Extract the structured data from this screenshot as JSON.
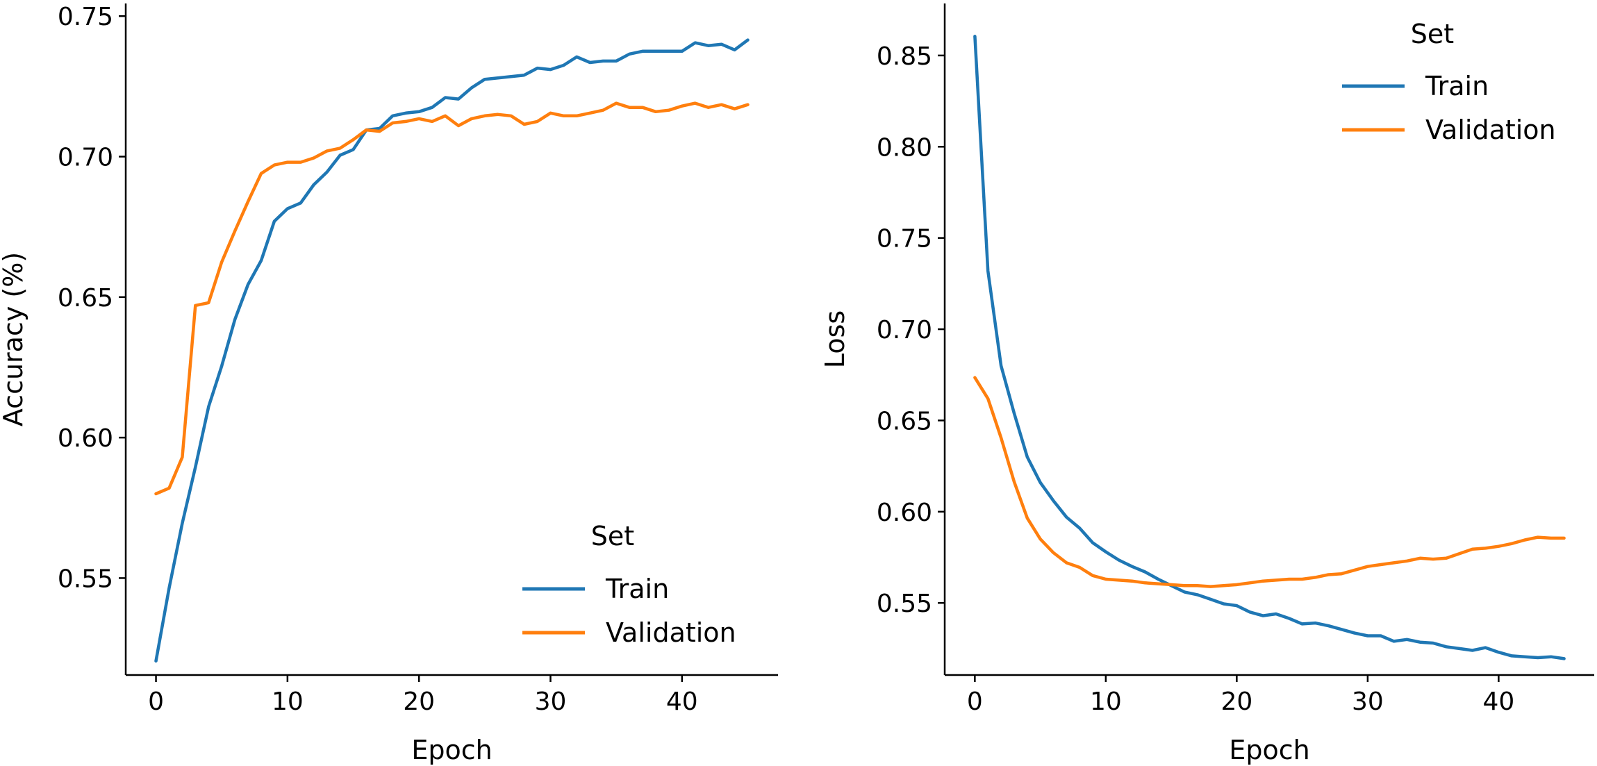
{
  "colors": {
    "train": "#1f77b4",
    "validation": "#ff7f0e",
    "axis": "#000000"
  },
  "chart_data": [
    {
      "type": "line",
      "xlabel": "Epoch",
      "ylabel": "Accuracy (%)",
      "xlim": [
        -2.3,
        47.3
      ],
      "ylim": [
        0.5155,
        0.7545
      ],
      "xticks": [
        0,
        10,
        20,
        30,
        40
      ],
      "yticks": [
        0.55,
        0.6,
        0.65,
        0.7,
        0.75
      ],
      "ytick_labels": [
        "0.55",
        "0.60",
        "0.65",
        "0.70",
        "0.75"
      ],
      "grid": false,
      "legend": {
        "title": "Set",
        "placement": "lower-right"
      },
      "x": [
        0,
        1,
        2,
        3,
        4,
        5,
        6,
        7,
        8,
        9,
        10,
        11,
        12,
        13,
        14,
        15,
        16,
        17,
        18,
        19,
        20,
        21,
        22,
        23,
        24,
        25,
        26,
        27,
        28,
        29,
        30,
        31,
        32,
        33,
        34,
        35,
        36,
        37,
        38,
        39,
        40,
        41,
        42,
        43,
        44,
        45
      ],
      "series": [
        {
          "name": "Train",
          "color_key": "train",
          "values": [
            0.5205,
            0.5465,
            0.5695,
            0.5895,
            0.611,
            0.6255,
            0.642,
            0.6545,
            0.663,
            0.677,
            0.6815,
            0.6835,
            0.69,
            0.6945,
            0.7005,
            0.7025,
            0.7095,
            0.71,
            0.7145,
            0.7155,
            0.716,
            0.7175,
            0.721,
            0.7205,
            0.7245,
            0.7275,
            0.728,
            0.7285,
            0.729,
            0.7315,
            0.731,
            0.7325,
            0.7355,
            0.7335,
            0.734,
            0.734,
            0.7365,
            0.7375,
            0.7375,
            0.7375,
            0.7375,
            0.7405,
            0.7395,
            0.74,
            0.738,
            0.7415
          ]
        },
        {
          "name": "Validation",
          "color_key": "validation",
          "values": [
            0.58,
            0.582,
            0.593,
            0.647,
            0.648,
            0.6625,
            0.6735,
            0.684,
            0.694,
            0.697,
            0.698,
            0.698,
            0.6995,
            0.702,
            0.703,
            0.706,
            0.7095,
            0.709,
            0.712,
            0.7125,
            0.7135,
            0.7125,
            0.7145,
            0.711,
            0.7135,
            0.7145,
            0.715,
            0.7145,
            0.7115,
            0.7125,
            0.7155,
            0.7145,
            0.7145,
            0.7155,
            0.7165,
            0.719,
            0.7175,
            0.7175,
            0.716,
            0.7165,
            0.718,
            0.719,
            0.7175,
            0.7185,
            0.717,
            0.7185
          ]
        }
      ]
    },
    {
      "type": "line",
      "xlabel": "Epoch",
      "ylabel": "Loss",
      "xlim": [
        -2.3,
        47.3
      ],
      "ylim": [
        0.5105,
        0.8785
      ],
      "xticks": [
        0,
        10,
        20,
        30,
        40
      ],
      "yticks": [
        0.55,
        0.6,
        0.65,
        0.7,
        0.75,
        0.8,
        0.85
      ],
      "ytick_labels": [
        "0.55",
        "0.60",
        "0.65",
        "0.70",
        "0.75",
        "0.80",
        "0.85"
      ],
      "grid": false,
      "legend": {
        "title": "Set",
        "placement": "upper-right"
      },
      "x": [
        0,
        1,
        2,
        3,
        4,
        5,
        6,
        7,
        8,
        9,
        10,
        11,
        12,
        13,
        14,
        15,
        16,
        17,
        18,
        19,
        20,
        21,
        22,
        23,
        24,
        25,
        26,
        27,
        28,
        29,
        30,
        31,
        32,
        33,
        34,
        35,
        36,
        37,
        38,
        39,
        40,
        41,
        42,
        43,
        44,
        45
      ],
      "series": [
        {
          "name": "Train",
          "color_key": "train",
          "values": [
            0.8605,
            0.732,
            0.68,
            0.654,
            0.63,
            0.616,
            0.606,
            0.597,
            0.591,
            0.583,
            0.578,
            0.5735,
            0.57,
            0.567,
            0.563,
            0.5595,
            0.556,
            0.5545,
            0.552,
            0.5495,
            0.5485,
            0.545,
            0.543,
            0.544,
            0.5415,
            0.5385,
            0.539,
            0.5375,
            0.5355,
            0.5335,
            0.532,
            0.532,
            0.529,
            0.53,
            0.5285,
            0.528,
            0.526,
            0.525,
            0.524,
            0.5255,
            0.523,
            0.521,
            0.5205,
            0.52,
            0.5205,
            0.5195
          ]
        },
        {
          "name": "Validation",
          "color_key": "validation",
          "values": [
            0.6735,
            0.662,
            0.6405,
            0.6165,
            0.5965,
            0.585,
            0.5775,
            0.572,
            0.5695,
            0.565,
            0.563,
            0.5625,
            0.562,
            0.561,
            0.5605,
            0.56,
            0.5595,
            0.5595,
            0.559,
            0.5595,
            0.56,
            0.561,
            0.562,
            0.5625,
            0.563,
            0.563,
            0.564,
            0.5655,
            0.566,
            0.568,
            0.57,
            0.571,
            0.572,
            0.573,
            0.5745,
            0.574,
            0.5745,
            0.577,
            0.5795,
            0.58,
            0.581,
            0.5825,
            0.5845,
            0.586,
            0.5855,
            0.5855
          ]
        }
      ]
    }
  ]
}
